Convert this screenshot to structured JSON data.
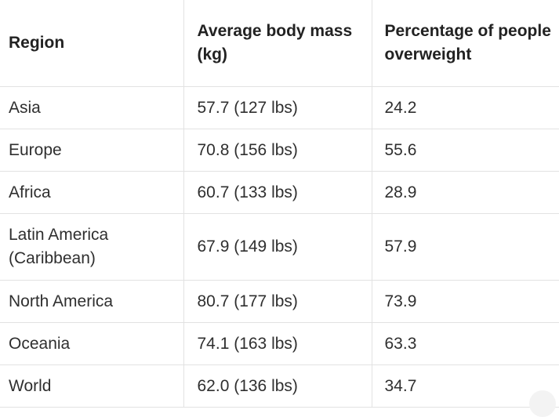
{
  "table": {
    "headers": [
      "Region",
      "Average body mass (kg)",
      "Percentage of people overweight"
    ],
    "rows": [
      [
        "Asia",
        "57.7 (127 lbs)",
        "24.2"
      ],
      [
        "Europe",
        "70.8 (156 lbs)",
        "55.6"
      ],
      [
        "Africa",
        "60.7 (133 lbs)",
        "28.9"
      ],
      [
        "Latin America (Caribbean)",
        "67.9 (149 lbs)",
        "57.9"
      ],
      [
        "North America",
        "80.7 (177 lbs)",
        "73.9"
      ],
      [
        "Oceania",
        "74.1 (163 lbs)",
        "63.3"
      ],
      [
        "World",
        "62.0 (136 lbs)",
        "34.7"
      ]
    ]
  }
}
